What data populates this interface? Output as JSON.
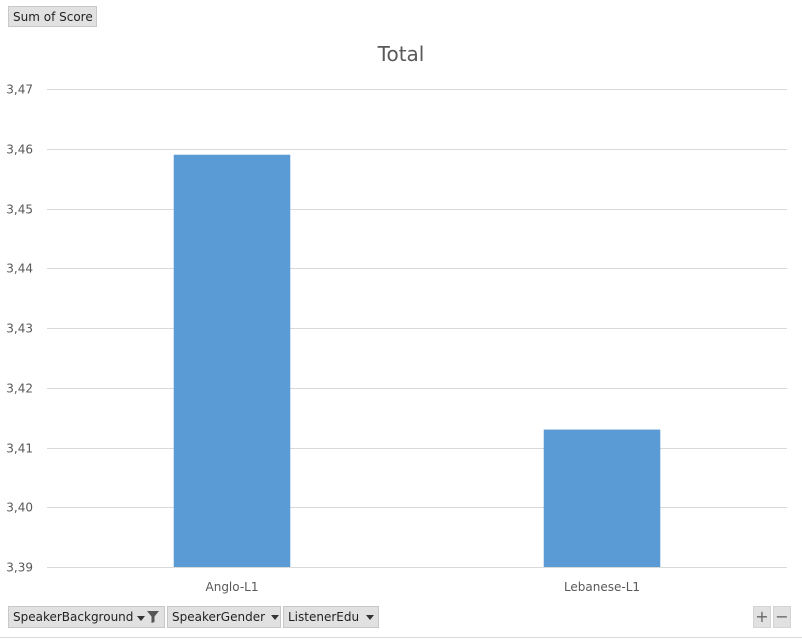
{
  "pivot": {
    "value_field": "Sum of Score",
    "axis_fields": [
      {
        "label": "SpeakerBackground",
        "filtered": true
      },
      {
        "label": "SpeakerGender",
        "filtered": false
      },
      {
        "label": "ListenerEdu",
        "filtered": false
      }
    ],
    "zoom_in": "+",
    "zoom_out": "−"
  },
  "colors": {
    "bar": "#5b9bd5",
    "grid": "#d9d9d9",
    "text": "#595959"
  },
  "chart_data": {
    "type": "bar",
    "title": "Total",
    "xlabel": "",
    "ylabel": "",
    "categories": [
      "Anglo-L1",
      "Lebanese-L1"
    ],
    "values": [
      3.459,
      3.413
    ],
    "ylim": [
      3.39,
      3.47
    ],
    "yticks": [
      3.39,
      3.4,
      3.41,
      3.42,
      3.43,
      3.44,
      3.45,
      3.46,
      3.47
    ],
    "ytick_labels": [
      "3,39",
      "3,40",
      "3,41",
      "3,42",
      "3,43",
      "3,44",
      "3,45",
      "3,46",
      "3,47"
    ],
    "grid": true,
    "legend": "none"
  }
}
